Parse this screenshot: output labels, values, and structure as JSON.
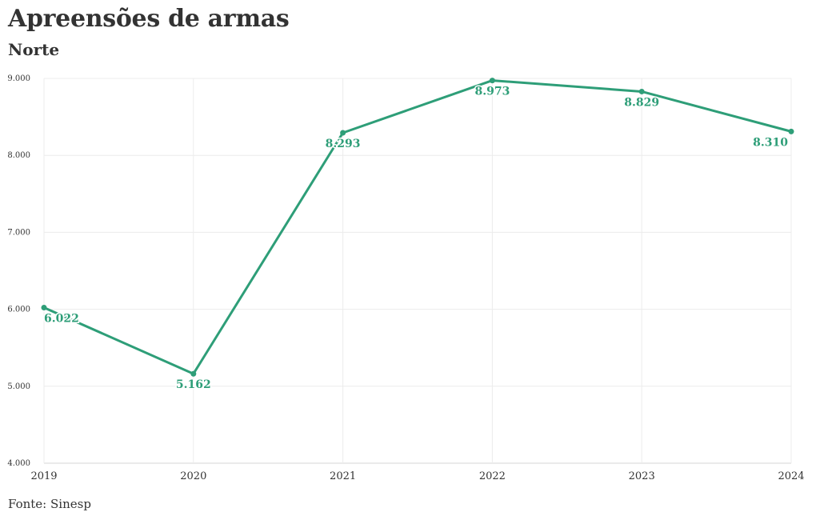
{
  "chart_data": {
    "type": "line",
    "title": "Apreensões de armas",
    "subtitle": "Norte",
    "source": "Fonte: Sinesp",
    "categories": [
      "2019",
      "2020",
      "2021",
      "2022",
      "2023",
      "2024"
    ],
    "series": [
      {
        "values": [
          6022,
          5162,
          8293,
          8973,
          8829,
          8310
        ],
        "labels": [
          "6.022",
          "5.162",
          "8.293",
          "8.973",
          "8.829",
          "8.310"
        ],
        "color": "#2e9e78"
      }
    ],
    "yticks": [
      4000,
      5000,
      6000,
      7000,
      8000,
      9000
    ],
    "ytick_labels": [
      "4.000",
      "5.000",
      "6.000",
      "7.000",
      "8.000",
      "9.000"
    ],
    "ylim": [
      4000,
      9000
    ],
    "xlabel": "",
    "ylabel": "",
    "grid": true,
    "legend": "none"
  }
}
